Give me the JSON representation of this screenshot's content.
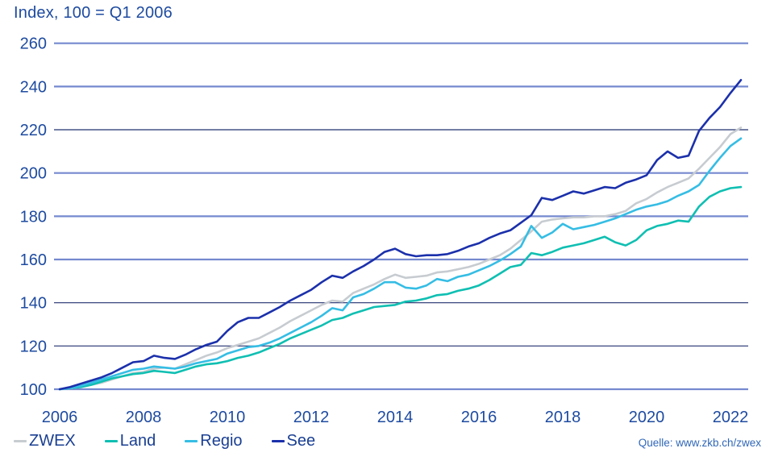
{
  "title": "Index, 100 = Q1 2006",
  "source": "Quelle: www.zkb.ch/zwex",
  "colors": {
    "axis_text": "#1e4ba0",
    "legend_text": "#1a3f92",
    "source_text": "#3067b8",
    "grid_light": "#7589cf",
    "grid_dark": "#22306f",
    "background": "#ffffff"
  },
  "chart_data": {
    "type": "line",
    "title": "Index, 100 = Q1 2006",
    "xlabel": "",
    "ylabel": "Index, 100 = Q1 2006",
    "x_start": 2006,
    "x_step": 0.25,
    "x_end": 2022.25,
    "x_ticks": [
      2006,
      2008,
      2010,
      2012,
      2014,
      2016,
      2018,
      2020,
      2022
    ],
    "y_ticks": [
      100,
      120,
      140,
      160,
      180,
      200,
      220,
      240,
      260
    ],
    "ylim": [
      100,
      260
    ],
    "grid": true,
    "dark_gridlines": [
      120,
      140,
      220
    ],
    "legend_position": "bottom",
    "series": [
      {
        "name": "ZWEX",
        "color": "#c7ccd1",
        "values": [
          100,
          100.5,
          101,
          102,
          103,
          104.5,
          106,
          107.5,
          108,
          109.5,
          110,
          109.5,
          111.5,
          113.5,
          115.5,
          117,
          119,
          120.5,
          122,
          123.5,
          126,
          128.5,
          131.5,
          134,
          136.5,
          139,
          141,
          140.5,
          144.5,
          146.5,
          148.5,
          151,
          153,
          151.5,
          152,
          152.5,
          154,
          154.5,
          155.5,
          156.5,
          158,
          160,
          162,
          165,
          169,
          173,
          177.5,
          178.5,
          179,
          179.5,
          179.5,
          180,
          180,
          181,
          182.5,
          186,
          188,
          191,
          193.5,
          195.5,
          197.5,
          202,
          207,
          212,
          218,
          221
        ]
      },
      {
        "name": "Land",
        "color": "#0fbfb2",
        "values": [
          100,
          100.5,
          101,
          102,
          103.5,
          105,
          106,
          107,
          107.5,
          108.5,
          108,
          107.5,
          109,
          110.5,
          111.5,
          112,
          113,
          114.5,
          115.5,
          117,
          119,
          121,
          123.5,
          125.5,
          127.5,
          129.5,
          132,
          133,
          135,
          136.5,
          138,
          138.5,
          139,
          140.5,
          141,
          142,
          143.5,
          144,
          145.5,
          146.5,
          148,
          150.5,
          153.5,
          156.5,
          157.5,
          163,
          162,
          163.5,
          165.5,
          166.5,
          167.5,
          169,
          170.5,
          168,
          166.5,
          169,
          173.5,
          175.5,
          176.5,
          178,
          177.5,
          184.5,
          189,
          191.5,
          193,
          193.5
        ]
      },
      {
        "name": "Regio",
        "color": "#35bde4",
        "values": [
          100,
          100.5,
          101.5,
          103,
          104.5,
          106,
          107.5,
          109,
          109.5,
          110.5,
          110,
          109.5,
          110.5,
          112,
          113,
          114,
          116.5,
          118,
          119.5,
          120,
          121.5,
          123.5,
          126,
          128.5,
          131,
          134,
          137.5,
          136.5,
          142.5,
          144,
          146.5,
          149.5,
          149.5,
          147,
          146.5,
          148,
          151,
          150,
          152,
          153,
          155,
          157,
          159.5,
          162.5,
          166,
          175.5,
          170,
          172.5,
          176.5,
          174,
          175,
          176,
          177.5,
          179,
          181,
          183,
          184.5,
          185.5,
          187,
          189.5,
          191.5,
          194.5,
          201,
          207,
          212.5,
          216
        ]
      },
      {
        "name": "See",
        "color": "#1b30ab",
        "values": [
          100,
          101,
          102.5,
          104,
          105.5,
          107.5,
          110,
          112.5,
          113,
          115.5,
          114.5,
          114,
          116,
          118.5,
          120.5,
          122,
          127,
          131,
          133,
          133,
          135.5,
          138,
          141,
          143.5,
          146,
          149.5,
          152.5,
          151.5,
          154.5,
          157,
          160,
          163.5,
          165,
          162.5,
          161.5,
          162,
          162,
          162.5,
          164,
          166,
          167.5,
          170,
          172,
          173.5,
          177,
          180.5,
          188.5,
          187.5,
          189.5,
          191.5,
          190.5,
          192,
          193.5,
          193,
          195.5,
          197,
          199,
          206,
          210,
          207,
          208,
          219.5,
          225.5,
          230.5,
          237,
          243
        ]
      }
    ]
  }
}
